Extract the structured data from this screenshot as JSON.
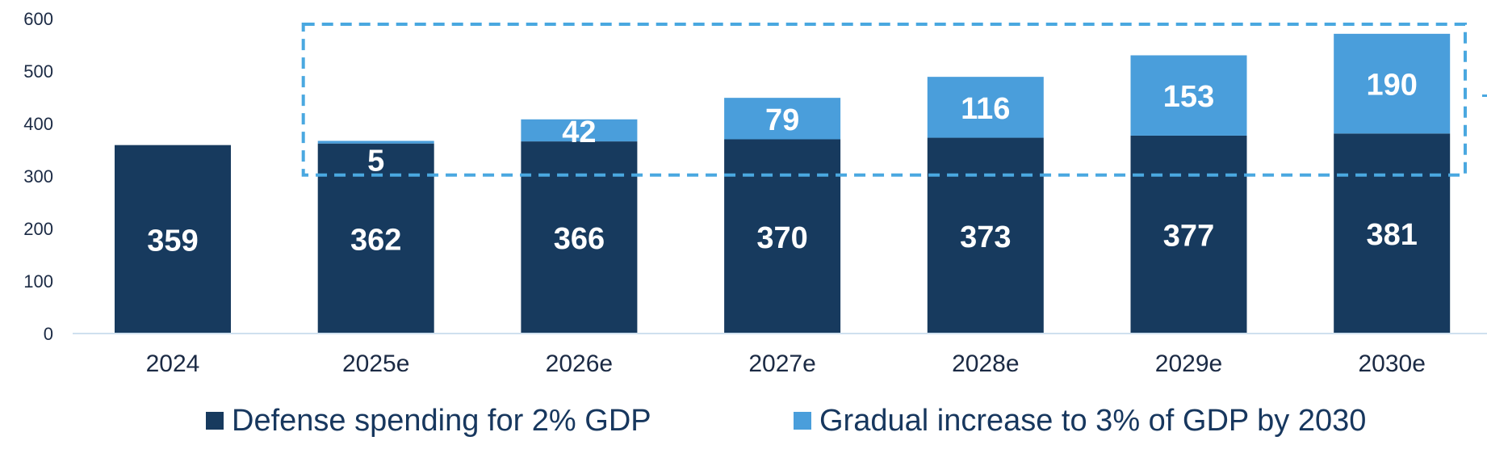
{
  "chart_data": {
    "type": "bar",
    "stacked": true,
    "categories": [
      "2024",
      "2025e",
      "2026e",
      "2027e",
      "2028e",
      "2029e",
      "2030e"
    ],
    "series": [
      {
        "name": "Defense spending for 2% GDP",
        "color": "#173a5e",
        "values": [
          359,
          362,
          366,
          370,
          373,
          377,
          381
        ]
      },
      {
        "name": "Gradual increase to 3% of GDP by 2030",
        "color": "#4a9edb",
        "values": [
          null,
          5,
          42,
          79,
          116,
          153,
          190
        ]
      }
    ],
    "ylim": [
      0,
      600
    ],
    "yticks": [
      0,
      100,
      200,
      300,
      400,
      500,
      600
    ],
    "grid": false,
    "legend_position": "bottom",
    "highlight_box": {
      "color": "#4aa8e0",
      "style": "dashed",
      "covers_categories": [
        "2025e",
        "2026e",
        "2027e",
        "2028e",
        "2029e",
        "2030e"
      ],
      "y_from": 305
    }
  }
}
